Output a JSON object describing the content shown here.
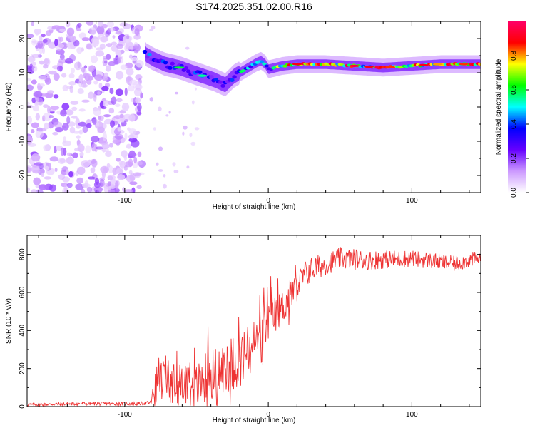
{
  "page_title": "S174.2025.351.02.00.R16",
  "chart_data": [
    {
      "type": "heatmap",
      "title": "S174.2025.351.02.00.R16",
      "xlabel": "Height of straight line (km)",
      "ylabel": "Frequency (Hz)",
      "xlim": [
        -168,
        148
      ],
      "ylim": [
        -25,
        25
      ],
      "xticks": [
        -100,
        0,
        100
      ],
      "yticks": [
        -20,
        -10,
        0,
        10,
        20
      ],
      "colorbar": {
        "label": "Normalized spectral amplitude",
        "range": [
          0,
          1
        ],
        "ticks": [
          "0.0",
          "0.2",
          "0.4",
          "0.6",
          "0.8"
        ],
        "colors": [
          "#ffffff",
          "#cc99ff",
          "#6600ff",
          "#0000ff",
          "#00ffff",
          "#00ff00",
          "#ffff00",
          "#ff0000",
          "#ff0066"
        ]
      },
      "noise_region_km": [
        -168,
        -88
      ],
      "ridge": {
        "description": "dominant frequency ridge",
        "x": [
          -86,
          -80,
          -72,
          -62,
          -52,
          -45,
          -38,
          -30,
          -24,
          -18,
          -12,
          -8,
          -5,
          -2,
          0,
          5,
          10,
          20,
          40,
          60,
          80,
          100,
          120,
          140,
          148
        ],
        "y": [
          15.5,
          14,
          12.5,
          11.5,
          10,
          9,
          8,
          6.5,
          9,
          10.5,
          12,
          13,
          13.5,
          12.5,
          11,
          11.5,
          12,
          12.5,
          12.5,
          12,
          11.5,
          12,
          12.5,
          12.5,
          12.5
        ]
      }
    },
    {
      "type": "line",
      "xlabel": "Height of straight line (km)",
      "ylabel": "SNR (10 * v/v)",
      "xlim": [
        -168,
        148
      ],
      "ylim": [
        0,
        900
      ],
      "xticks": [
        -100,
        0,
        100
      ],
      "yticks": [
        0,
        200,
        400,
        600,
        800
      ],
      "color": "#ee3333",
      "series": [
        {
          "name": "SNR",
          "x": [
            -168,
            -150,
            -130,
            -110,
            -90,
            -82,
            -78,
            -75,
            -70,
            -65,
            -60,
            -55,
            -50,
            -45,
            -40,
            -35,
            -30,
            -25,
            -20,
            -15,
            -10,
            -5,
            0,
            5,
            10,
            15,
            20,
            25,
            30,
            40,
            50,
            60,
            70,
            80,
            90,
            100,
            110,
            120,
            130,
            140,
            148
          ],
          "y": [
            10,
            12,
            15,
            15,
            15,
            20,
            110,
            160,
            150,
            120,
            110,
            150,
            100,
            140,
            180,
            180,
            200,
            230,
            250,
            280,
            340,
            380,
            450,
            480,
            520,
            580,
            630,
            690,
            720,
            750,
            780,
            775,
            770,
            775,
            775,
            780,
            770,
            760,
            750,
            770,
            780
          ]
        }
      ],
      "spread": {
        "x": [
          -168,
          -82,
          -78,
          -60,
          -40,
          -20,
          0,
          20,
          40,
          100,
          148
        ],
        "amp": [
          8,
          10,
          120,
          110,
          140,
          150,
          110,
          80,
          60,
          45,
          40
        ]
      }
    }
  ]
}
